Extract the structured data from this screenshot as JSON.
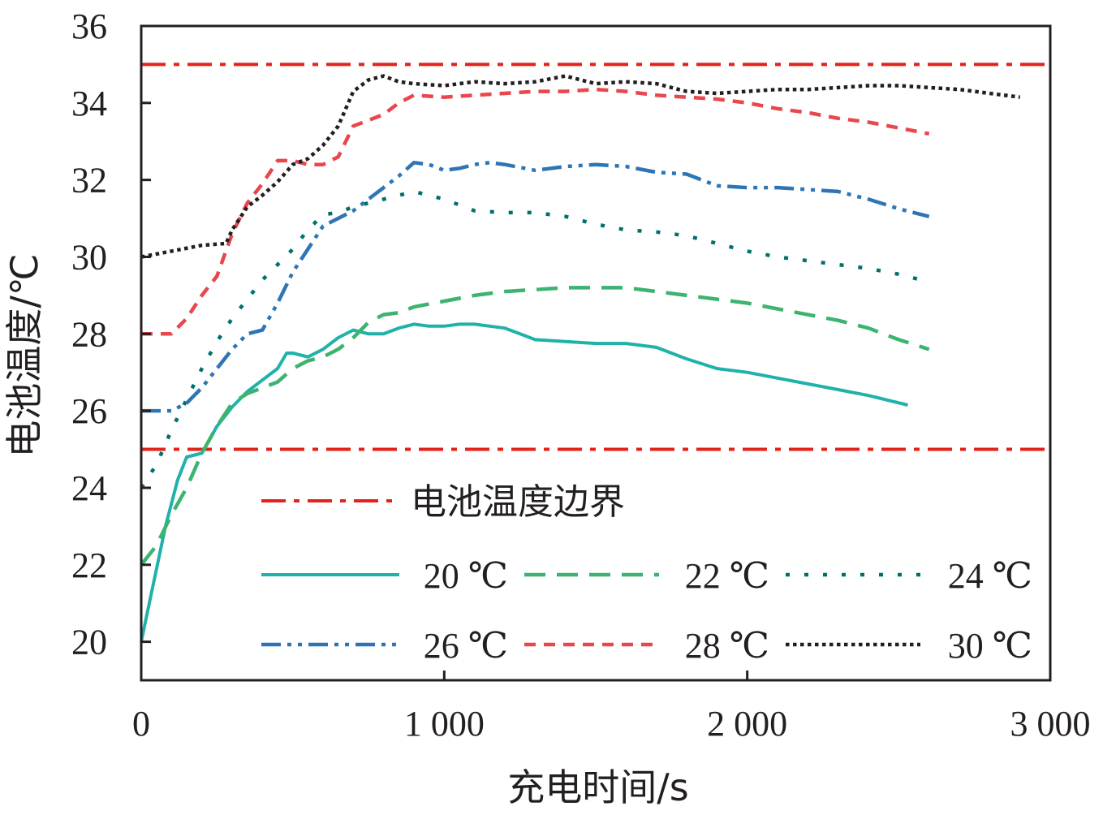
{
  "chart_data": {
    "type": "line",
    "xlabel": "充电时间/s",
    "ylabel": "电池温度/℃",
    "xlim": [
      0,
      3000
    ],
    "ylim": [
      19,
      36
    ],
    "x_ticks": [
      0,
      1000,
      2000,
      3000
    ],
    "x_tick_labels": [
      "0",
      "1 000",
      "2 000",
      "3 000"
    ],
    "y_ticks": [
      20,
      22,
      24,
      26,
      28,
      30,
      32,
      34,
      36
    ],
    "y_tick_labels": [
      "20",
      "22",
      "24",
      "26",
      "28",
      "30",
      "32",
      "34",
      "36"
    ],
    "grid": false,
    "boundaries": {
      "name": "电池温度边界",
      "color": "#e2231a",
      "values": [
        35,
        25
      ]
    },
    "series": [
      {
        "name": "20 ℃",
        "color": "#20b2aa",
        "style": "solid",
        "points": [
          [
            0,
            20
          ],
          [
            40,
            21.5
          ],
          [
            80,
            23
          ],
          [
            120,
            24.2
          ],
          [
            150,
            24.8
          ],
          [
            200,
            24.9
          ],
          [
            250,
            25.6
          ],
          [
            300,
            26.1
          ],
          [
            350,
            26.5
          ],
          [
            400,
            26.8
          ],
          [
            450,
            27.1
          ],
          [
            480,
            27.5
          ],
          [
            500,
            27.5
          ],
          [
            550,
            27.4
          ],
          [
            600,
            27.6
          ],
          [
            650,
            27.9
          ],
          [
            700,
            28.1
          ],
          [
            750,
            28
          ],
          [
            800,
            28
          ],
          [
            850,
            28.15
          ],
          [
            900,
            28.25
          ],
          [
            950,
            28.2
          ],
          [
            1000,
            28.2
          ],
          [
            1050,
            28.25
          ],
          [
            1100,
            28.25
          ],
          [
            1150,
            28.2
          ],
          [
            1200,
            28.15
          ],
          [
            1250,
            28
          ],
          [
            1300,
            27.85
          ],
          [
            1400,
            27.8
          ],
          [
            1500,
            27.75
          ],
          [
            1600,
            27.75
          ],
          [
            1700,
            27.65
          ],
          [
            1800,
            27.35
          ],
          [
            1900,
            27.1
          ],
          [
            2000,
            27
          ],
          [
            2100,
            26.85
          ],
          [
            2200,
            26.7
          ],
          [
            2300,
            26.55
          ],
          [
            2400,
            26.4
          ],
          [
            2530,
            26.15
          ]
        ]
      },
      {
        "name": "22 ℃",
        "color": "#3cb371",
        "style": "dash",
        "points": [
          [
            0,
            22
          ],
          [
            50,
            22.5
          ],
          [
            100,
            23.3
          ],
          [
            150,
            24
          ],
          [
            200,
            24.9
          ],
          [
            250,
            25.6
          ],
          [
            300,
            26.2
          ],
          [
            350,
            26.45
          ],
          [
            400,
            26.6
          ],
          [
            450,
            26.75
          ],
          [
            500,
            27.1
          ],
          [
            550,
            27.3
          ],
          [
            600,
            27.4
          ],
          [
            650,
            27.6
          ],
          [
            700,
            27.9
          ],
          [
            750,
            28.3
          ],
          [
            800,
            28.5
          ],
          [
            850,
            28.55
          ],
          [
            900,
            28.7
          ],
          [
            1000,
            28.85
          ],
          [
            1100,
            29
          ],
          [
            1200,
            29.1
          ],
          [
            1300,
            29.15
          ],
          [
            1400,
            29.2
          ],
          [
            1500,
            29.2
          ],
          [
            1600,
            29.2
          ],
          [
            1700,
            29.1
          ],
          [
            1800,
            29
          ],
          [
            1900,
            28.9
          ],
          [
            2000,
            28.8
          ],
          [
            2100,
            28.65
          ],
          [
            2200,
            28.5
          ],
          [
            2300,
            28.35
          ],
          [
            2400,
            28.15
          ],
          [
            2500,
            27.85
          ],
          [
            2600,
            27.6
          ]
        ]
      },
      {
        "name": "24 ℃",
        "color": "#00706b",
        "style": "dot",
        "points": [
          [
            0,
            24
          ],
          [
            50,
            24.6
          ],
          [
            100,
            25.5
          ],
          [
            150,
            26.3
          ],
          [
            200,
            27.1
          ],
          [
            250,
            27.8
          ],
          [
            300,
            28.4
          ],
          [
            350,
            28.9
          ],
          [
            400,
            29.4
          ],
          [
            450,
            29.8
          ],
          [
            500,
            30.2
          ],
          [
            550,
            30.7
          ],
          [
            600,
            31.1
          ],
          [
            650,
            31.15
          ],
          [
            700,
            31.3
          ],
          [
            800,
            31.5
          ],
          [
            900,
            31.7
          ],
          [
            1000,
            31.5
          ],
          [
            1100,
            31.2
          ],
          [
            1200,
            31.15
          ],
          [
            1300,
            31.15
          ],
          [
            1400,
            31.05
          ],
          [
            1500,
            30.85
          ],
          [
            1600,
            30.7
          ],
          [
            1700,
            30.65
          ],
          [
            1800,
            30.55
          ],
          [
            1900,
            30.35
          ],
          [
            2000,
            30.15
          ],
          [
            2100,
            30
          ],
          [
            2200,
            29.9
          ],
          [
            2300,
            29.8
          ],
          [
            2400,
            29.7
          ],
          [
            2500,
            29.55
          ],
          [
            2600,
            29.35
          ]
        ]
      },
      {
        "name": "26 ℃",
        "color": "#2e75b6",
        "style": "dashdotdot",
        "points": [
          [
            0,
            26
          ],
          [
            100,
            26
          ],
          [
            150,
            26.2
          ],
          [
            200,
            26.6
          ],
          [
            250,
            27.1
          ],
          [
            300,
            27.6
          ],
          [
            350,
            28
          ],
          [
            400,
            28.1
          ],
          [
            450,
            28.8
          ],
          [
            500,
            29.6
          ],
          [
            550,
            30.2
          ],
          [
            600,
            30.8
          ],
          [
            700,
            31.2
          ],
          [
            800,
            31.8
          ],
          [
            850,
            32.1
          ],
          [
            900,
            32.45
          ],
          [
            950,
            32.4
          ],
          [
            1000,
            32.25
          ],
          [
            1050,
            32.3
          ],
          [
            1100,
            32.4
          ],
          [
            1150,
            32.45
          ],
          [
            1200,
            32.4
          ],
          [
            1300,
            32.25
          ],
          [
            1400,
            32.35
          ],
          [
            1500,
            32.4
          ],
          [
            1600,
            32.35
          ],
          [
            1700,
            32.2
          ],
          [
            1800,
            32.15
          ],
          [
            1900,
            31.85
          ],
          [
            2000,
            31.8
          ],
          [
            2100,
            31.8
          ],
          [
            2200,
            31.75
          ],
          [
            2300,
            31.7
          ],
          [
            2400,
            31.5
          ],
          [
            2500,
            31.25
          ],
          [
            2600,
            31.05
          ]
        ]
      },
      {
        "name": "28 ℃",
        "color": "#e8474d",
        "style": "shortdash",
        "points": [
          [
            0,
            28
          ],
          [
            100,
            28
          ],
          [
            150,
            28.4
          ],
          [
            200,
            29
          ],
          [
            250,
            29.5
          ],
          [
            300,
            30.6
          ],
          [
            350,
            31.4
          ],
          [
            400,
            31.9
          ],
          [
            450,
            32.5
          ],
          [
            500,
            32.5
          ],
          [
            550,
            32.4
          ],
          [
            600,
            32.4
          ],
          [
            650,
            32.6
          ],
          [
            700,
            33.4
          ],
          [
            800,
            33.7
          ],
          [
            850,
            34
          ],
          [
            900,
            34.2
          ],
          [
            1000,
            34.15
          ],
          [
            1100,
            34.2
          ],
          [
            1200,
            34.25
          ],
          [
            1300,
            34.3
          ],
          [
            1400,
            34.3
          ],
          [
            1500,
            34.35
          ],
          [
            1600,
            34.3
          ],
          [
            1700,
            34.2
          ],
          [
            1800,
            34.15
          ],
          [
            1900,
            34.1
          ],
          [
            2000,
            34
          ],
          [
            2100,
            33.85
          ],
          [
            2200,
            33.75
          ],
          [
            2300,
            33.6
          ],
          [
            2400,
            33.5
          ],
          [
            2500,
            33.35
          ],
          [
            2600,
            33.2
          ]
        ]
      },
      {
        "name": "30 ℃",
        "color": "#231f20",
        "style": "densedot",
        "points": [
          [
            0,
            30
          ],
          [
            100,
            30.15
          ],
          [
            200,
            30.3
          ],
          [
            280,
            30.35
          ],
          [
            300,
            30.7
          ],
          [
            350,
            31.3
          ],
          [
            400,
            31.6
          ],
          [
            450,
            31.95
          ],
          [
            500,
            32.4
          ],
          [
            550,
            32.55
          ],
          [
            600,
            32.9
          ],
          [
            650,
            33.4
          ],
          [
            700,
            34.3
          ],
          [
            750,
            34.6
          ],
          [
            800,
            34.7
          ],
          [
            850,
            34.55
          ],
          [
            900,
            34.5
          ],
          [
            1000,
            34.45
          ],
          [
            1100,
            34.55
          ],
          [
            1200,
            34.5
          ],
          [
            1300,
            34.55
          ],
          [
            1400,
            34.7
          ],
          [
            1450,
            34.6
          ],
          [
            1500,
            34.5
          ],
          [
            1600,
            34.55
          ],
          [
            1700,
            34.5
          ],
          [
            1800,
            34.3
          ],
          [
            1900,
            34.25
          ],
          [
            2000,
            34.3
          ],
          [
            2100,
            34.35
          ],
          [
            2200,
            34.35
          ],
          [
            2300,
            34.4
          ],
          [
            2400,
            34.45
          ],
          [
            2500,
            34.45
          ],
          [
            2600,
            34.4
          ],
          [
            2700,
            34.35
          ],
          [
            2800,
            34.25
          ],
          [
            2900,
            34.15
          ]
        ]
      }
    ]
  }
}
